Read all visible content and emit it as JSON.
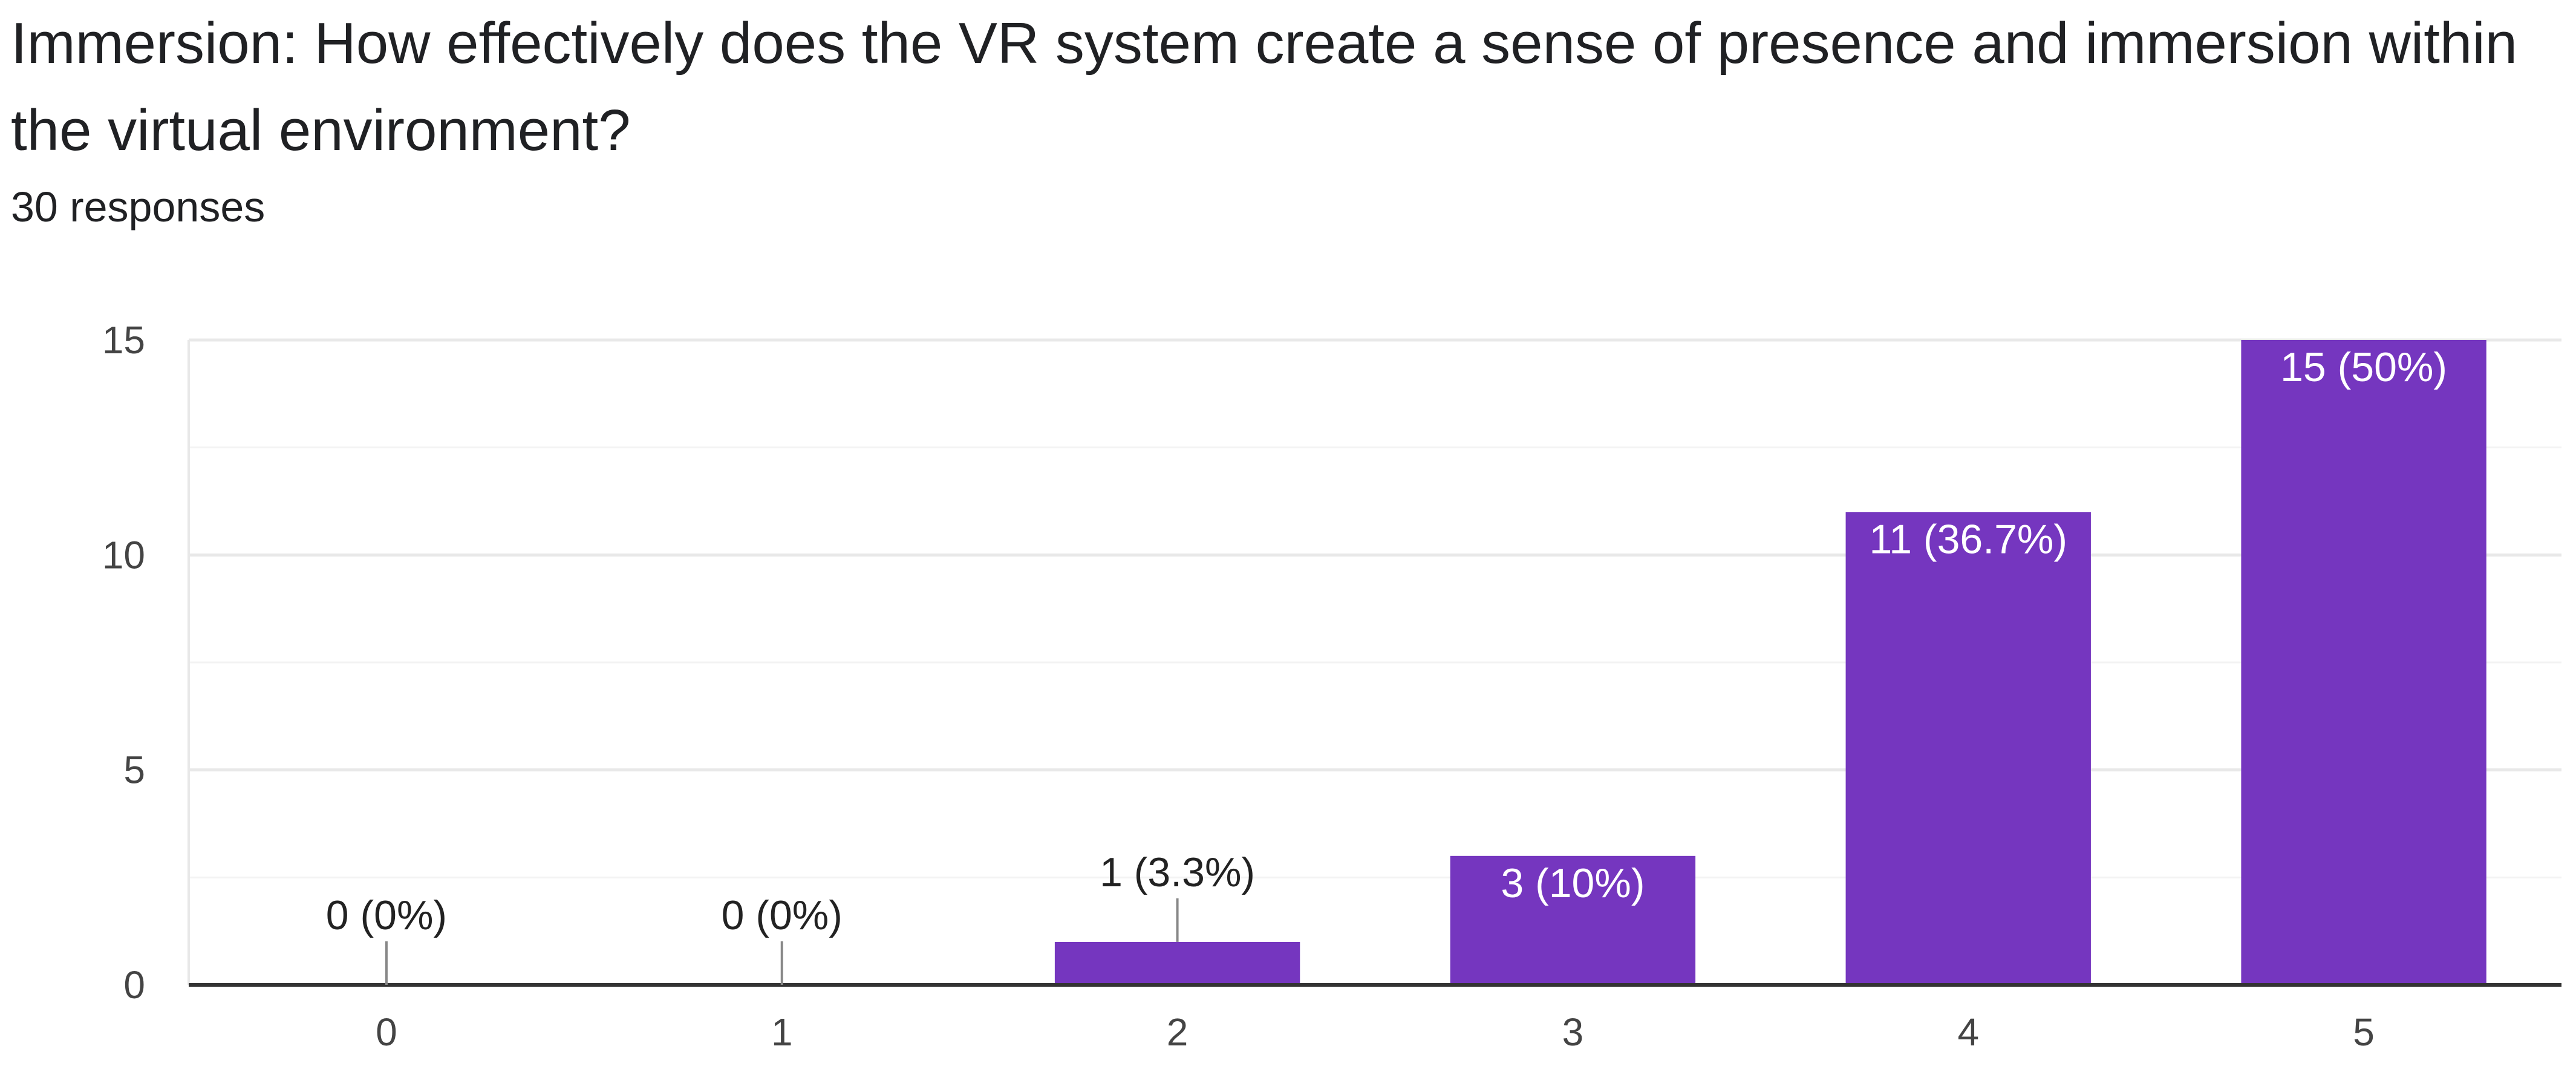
{
  "header": {
    "title": "Immersion: How effectively does the VR system create a sense of presence and immersion within the virtual environment?",
    "responses": "30 responses"
  },
  "colors": {
    "bar": "#7536BF",
    "gridline": "#e8e8e8",
    "minor_gridline": "#f3f3f3",
    "axis": "#333333",
    "label_inside": "#ffffff",
    "label_outside": "#222222",
    "leader": "#888888"
  },
  "chart_data": {
    "type": "bar",
    "title": "",
    "xlabel": "",
    "ylabel": "",
    "categories": [
      "0",
      "1",
      "2",
      "3",
      "4",
      "5"
    ],
    "values": [
      0,
      0,
      1,
      3,
      11,
      15
    ],
    "labels": [
      "0 (0%)",
      "0 (0%)",
      "1 (3.3%)",
      "3 (10%)",
      "11 (36.7%)",
      "15 (50%)"
    ],
    "ylim": [
      0,
      15
    ],
    "yticks": [
      "0",
      "5",
      "10",
      "15"
    ],
    "grid": true,
    "legend": "none"
  }
}
